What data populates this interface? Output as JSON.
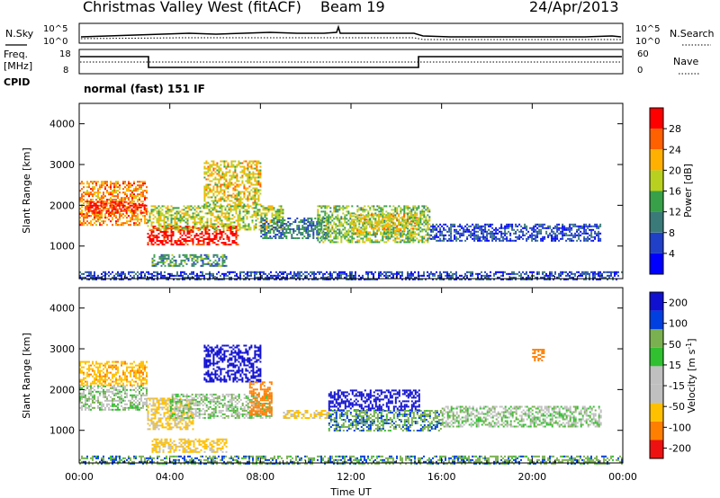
{
  "header": {
    "title": "Christmas Valley West (fitACF)",
    "beam": "Beam 19",
    "date": "24/Apr/2013"
  },
  "noise_panel": {
    "left_label": "N.Sky",
    "right_label": "N.Search",
    "left_ticks": [
      "10^5",
      "10^0"
    ],
    "right_ticks": [
      "10^5",
      "10^0"
    ]
  },
  "freq_panel": {
    "left_label_line1": "Freq.",
    "left_label_line2": "[MHz]",
    "right_label": "Nave",
    "left_ticks": [
      "18",
      "8"
    ],
    "right_ticks": [
      "60",
      "0"
    ],
    "cpid_label": "CPID",
    "cpid_value": "normal (fast) 151 IF"
  },
  "colors": {
    "power_scale": [
      "#0000ff",
      "#2040c8",
      "#3a7a78",
      "#38a048",
      "#b8d020",
      "#ffb000",
      "#ff6000",
      "#ff0000"
    ],
    "velocity_scale": [
      "#ee1111",
      "#ff7f00",
      "#ffc000",
      "#c0c0c0",
      "#c0c0c0",
      "#30c030",
      "#7ab050",
      "#0040e0",
      "#1010d0"
    ]
  },
  "chart_data": [
    {
      "type": "heatmap",
      "name": "power",
      "ylabel": "Slant Range [km]",
      "xlabel": "",
      "x_ticks": [
        "00:00",
        "04:00",
        "08:00",
        "12:00",
        "16:00",
        "20:00",
        "00:00"
      ],
      "y_ticks": [
        "1000",
        "2000",
        "3000",
        "4000"
      ],
      "ylim": [
        200,
        4500
      ],
      "xlim_hours": [
        0,
        24
      ],
      "colorbar_label": "Power [dB]",
      "colorbar_ticks": [
        "4",
        "8",
        "12",
        "16",
        "20",
        "24",
        "28"
      ],
      "colorbar_range": [
        0,
        32
      ],
      "regions": [
        {
          "t0": 0.0,
          "t1": 3.0,
          "r0": 1500,
          "r1": 2600,
          "value": 24
        },
        {
          "t0": 0.3,
          "t1": 3.0,
          "r0": 1800,
          "r1": 2100,
          "value": 30
        },
        {
          "t0": 3.0,
          "t1": 7.0,
          "r0": 1050,
          "r1": 1500,
          "value": 30
        },
        {
          "t0": 3.0,
          "t1": 9.0,
          "r0": 1400,
          "r1": 2000,
          "value": 18
        },
        {
          "t0": 5.5,
          "t1": 8.0,
          "r0": 2000,
          "r1": 3100,
          "value": 20
        },
        {
          "t0": 3.2,
          "t1": 6.5,
          "r0": 500,
          "r1": 800,
          "value": 12
        },
        {
          "t0": 8.0,
          "t1": 11.0,
          "r0": 1200,
          "r1": 1700,
          "value": 10
        },
        {
          "t0": 10.5,
          "t1": 15.5,
          "r0": 1100,
          "r1": 2000,
          "value": 16
        },
        {
          "t0": 12.0,
          "t1": 15.0,
          "r0": 1300,
          "r1": 1800,
          "value": 20
        },
        {
          "t0": 15.5,
          "t1": 23.0,
          "r0": 1150,
          "r1": 1550,
          "value": 6
        },
        {
          "t0": 0.0,
          "t1": 24.0,
          "r0": 200,
          "r1": 380,
          "value": 6
        }
      ]
    },
    {
      "type": "heatmap",
      "name": "velocity",
      "ylabel": "Slant Range [km]",
      "xlabel": "Time UT",
      "x_ticks": [
        "00:00",
        "04:00",
        "08:00",
        "12:00",
        "16:00",
        "20:00",
        "00:00"
      ],
      "y_ticks": [
        "1000",
        "2000",
        "3000",
        "4000"
      ],
      "ylim": [
        200,
        4500
      ],
      "xlim_hours": [
        0,
        24
      ],
      "colorbar_label": "Velocity [m s^-1]",
      "colorbar_ticks": [
        "200",
        "100",
        "50",
        "15",
        "-15",
        "-50",
        "-100",
        "-200"
      ],
      "regions": [
        {
          "t0": 0.0,
          "t1": 3.0,
          "r0": 2100,
          "r1": 2700,
          "value": -80
        },
        {
          "t0": 0.0,
          "t1": 3.0,
          "r0": 1500,
          "r1": 2100,
          "value": 0
        },
        {
          "t0": 3.0,
          "t1": 5.0,
          "r0": 1050,
          "r1": 1800,
          "value": -60
        },
        {
          "t0": 4.0,
          "t1": 8.5,
          "r0": 1300,
          "r1": 1900,
          "value": 0
        },
        {
          "t0": 3.2,
          "t1": 6.5,
          "r0": 450,
          "r1": 800,
          "value": -60
        },
        {
          "t0": 5.5,
          "t1": 8.0,
          "r0": 2200,
          "r1": 3100,
          "value": 180
        },
        {
          "t0": 7.5,
          "t1": 8.5,
          "r0": 1400,
          "r1": 2200,
          "value": -150
        },
        {
          "t0": 9.0,
          "t1": 11.0,
          "r0": 1300,
          "r1": 1500,
          "value": -60
        },
        {
          "t0": 11.0,
          "t1": 15.0,
          "r0": 1500,
          "r1": 2000,
          "value": 150
        },
        {
          "t0": 11.0,
          "t1": 16.0,
          "r0": 1000,
          "r1": 1500,
          "value": 40
        },
        {
          "t0": 16.0,
          "t1": 23.0,
          "r0": 1100,
          "r1": 1600,
          "value": 0
        },
        {
          "t0": 0.0,
          "t1": 24.0,
          "r0": 200,
          "r1": 380,
          "value": 40
        },
        {
          "t0": 20.0,
          "t1": 20.5,
          "r0": 2700,
          "r1": 3000,
          "value": -150
        }
      ]
    }
  ]
}
